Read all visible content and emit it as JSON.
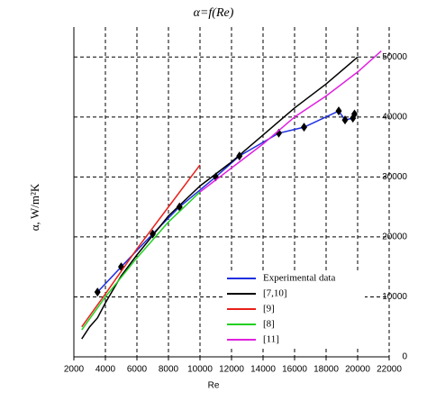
{
  "chart_data": {
    "type": "line",
    "title": "α=f(Re)",
    "x_label": "Re",
    "y_label": "α, W/m²K",
    "xlim": [
      2000,
      22000
    ],
    "ylim": [
      0,
      55000
    ],
    "xticks": [
      2000,
      4000,
      6000,
      8000,
      10000,
      12000,
      14000,
      16000,
      18000,
      20000,
      22000
    ],
    "yticks": [
      0,
      10000,
      20000,
      30000,
      40000,
      50000
    ],
    "grid": true,
    "legend": "lower right",
    "series": [
      {
        "name": "Experimental data",
        "color": "#1f2fe0",
        "marker": "diamond",
        "marker_color": "#000000",
        "x": [
          3500,
          5000,
          7000,
          8700,
          11000,
          12500,
          15000,
          16600,
          18800,
          19200,
          19700,
          19800
        ],
        "values": [
          10800,
          15000,
          20500,
          25000,
          30000,
          33500,
          37300,
          38300,
          41000,
          39500,
          39800,
          40500
        ]
      },
      {
        "name": "[7,10]",
        "color": "#000000",
        "x": [
          2500,
          3000,
          3500,
          4000,
          5000,
          6000,
          8000,
          10000,
          12000,
          14000,
          16000,
          18000,
          20000
        ],
        "values": [
          3000,
          5000,
          6500,
          9000,
          13500,
          17000,
          23500,
          28500,
          32500,
          37000,
          41500,
          45500,
          50000
        ]
      },
      {
        "name": "[9]",
        "color": "#e8201a",
        "x": [
          2500,
          4000,
          6000,
          8000,
          10000
        ],
        "values": [
          5000,
          10500,
          18000,
          25000,
          32000
        ]
      },
      {
        "name": "[8]",
        "color": "#22d022",
        "x": [
          2500,
          4000,
          6000,
          8000,
          10000
        ],
        "values": [
          4500,
          10000,
          16500,
          22500,
          27500
        ]
      },
      {
        "name": "[11]",
        "color": "#e020e0",
        "x": [
          10000,
          12000,
          14000,
          16000,
          18000,
          20000,
          21500
        ],
        "values": [
          27500,
          31500,
          35500,
          40000,
          43500,
          47500,
          51000
        ]
      }
    ]
  }
}
